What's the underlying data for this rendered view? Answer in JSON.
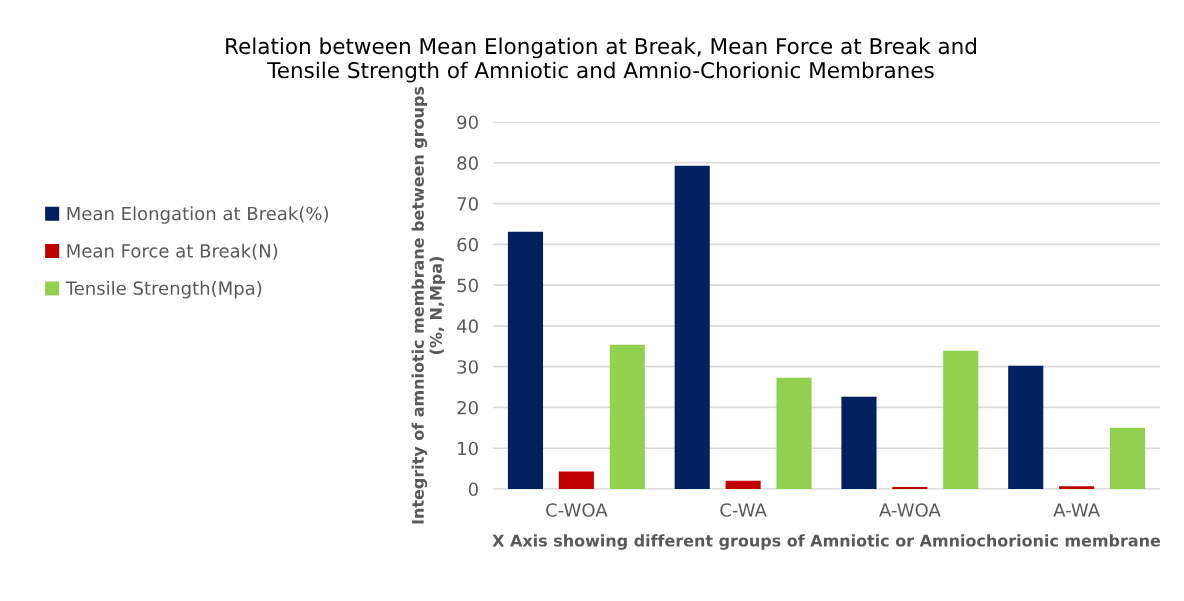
{
  "chart_data": {
    "type": "bar",
    "title": "Relation between Mean Elongation at Break, Mean Force at Break and\nTensile Strength of Amniotic and Amnio-Chorionic Membranes",
    "xlabel": "X Axis showing different groups of Amniotic or Amniochorionic membrane",
    "ylabel": "Integrity of amniotic membrane between groups\n(%, N,Mpa)",
    "categories": [
      "C-WOA",
      "C-WA",
      "A-WOA",
      "A-WA"
    ],
    "series": [
      {
        "name": "Mean Elongation at Break(%)",
        "color": "#002060",
        "values": [
          63.1,
          79.3,
          22.6,
          30.2
        ]
      },
      {
        "name": "Mean Force at Break(N)",
        "color": "#c00000",
        "values": [
          4.3,
          2.0,
          0.5,
          0.7
        ]
      },
      {
        "name": "Tensile Strength(Mpa)",
        "color": "#92d050",
        "values": [
          35.4,
          27.3,
          33.9,
          15.0
        ]
      }
    ],
    "ylim": [
      0,
      90
    ],
    "yticks": [
      0,
      10,
      20,
      30,
      40,
      50,
      60,
      70,
      80,
      90
    ],
    "grid": "y",
    "legend": "left"
  }
}
